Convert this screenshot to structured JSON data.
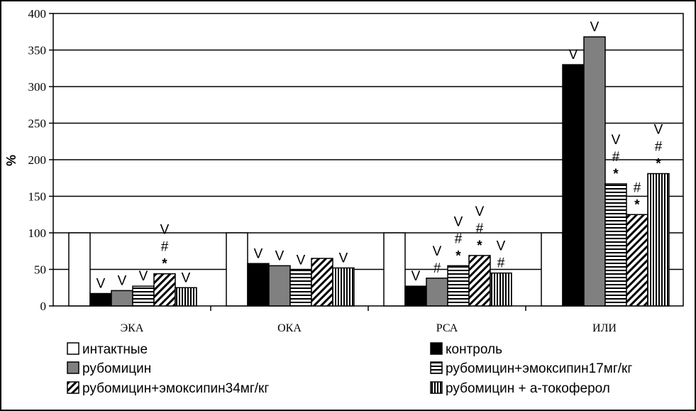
{
  "chart_data": {
    "type": "bar",
    "title": "",
    "xlabel": "",
    "ylabel": "%",
    "ylim": [
      0,
      400
    ],
    "yticks": [
      0,
      50,
      100,
      150,
      200,
      250,
      300,
      350,
      400
    ],
    "yticks_labels": [
      "0",
      "50",
      "100",
      "150",
      "200",
      "250",
      "300",
      "350",
      "400"
    ],
    "grid": true,
    "legend_position": "bottom",
    "categories": [
      "ЭКА",
      "ОКА",
      "РСА",
      "ИЛИ"
    ],
    "series": [
      {
        "name": "интактные",
        "fill": "white",
        "values": [
          100,
          100,
          100,
          100
        ]
      },
      {
        "name": "контроль",
        "fill": "black",
        "values": [
          17,
          58,
          27,
          330
        ]
      },
      {
        "name": "рубомицин",
        "fill": "gray",
        "values": [
          21,
          55,
          38,
          368
        ]
      },
      {
        "name": "рубомицин+эмоксипин17мг/кг",
        "fill": "hlines",
        "values": [
          27,
          49,
          55,
          167
        ]
      },
      {
        "name": "рубомицин+эмоксипин34мг/кг",
        "fill": "diag",
        "values": [
          44,
          65,
          69,
          125
        ]
      },
      {
        "name": "рубомицин + а-токоферол",
        "fill": "vlines",
        "values": [
          25,
          52,
          45,
          181
        ]
      }
    ],
    "annotations": [
      [
        [],
        [
          "V"
        ],
        [
          "V"
        ],
        [
          "V"
        ],
        [
          "*",
          "#",
          "V"
        ],
        [
          "V"
        ]
      ],
      [
        [],
        [
          "V"
        ],
        [
          "V"
        ],
        [
          "V"
        ],
        [],
        [
          "V"
        ]
      ],
      [
        [],
        [
          "V"
        ],
        [
          "#",
          "V"
        ],
        [
          "*",
          "#",
          "V"
        ],
        [
          "*",
          "#",
          "V"
        ],
        [
          "#",
          "V"
        ]
      ],
      [
        [],
        [
          "V"
        ],
        [
          "V"
        ],
        [
          "*",
          "#",
          "V"
        ],
        [
          "*",
          "#"
        ],
        [
          "*",
          "#",
          "V"
        ]
      ]
    ]
  }
}
